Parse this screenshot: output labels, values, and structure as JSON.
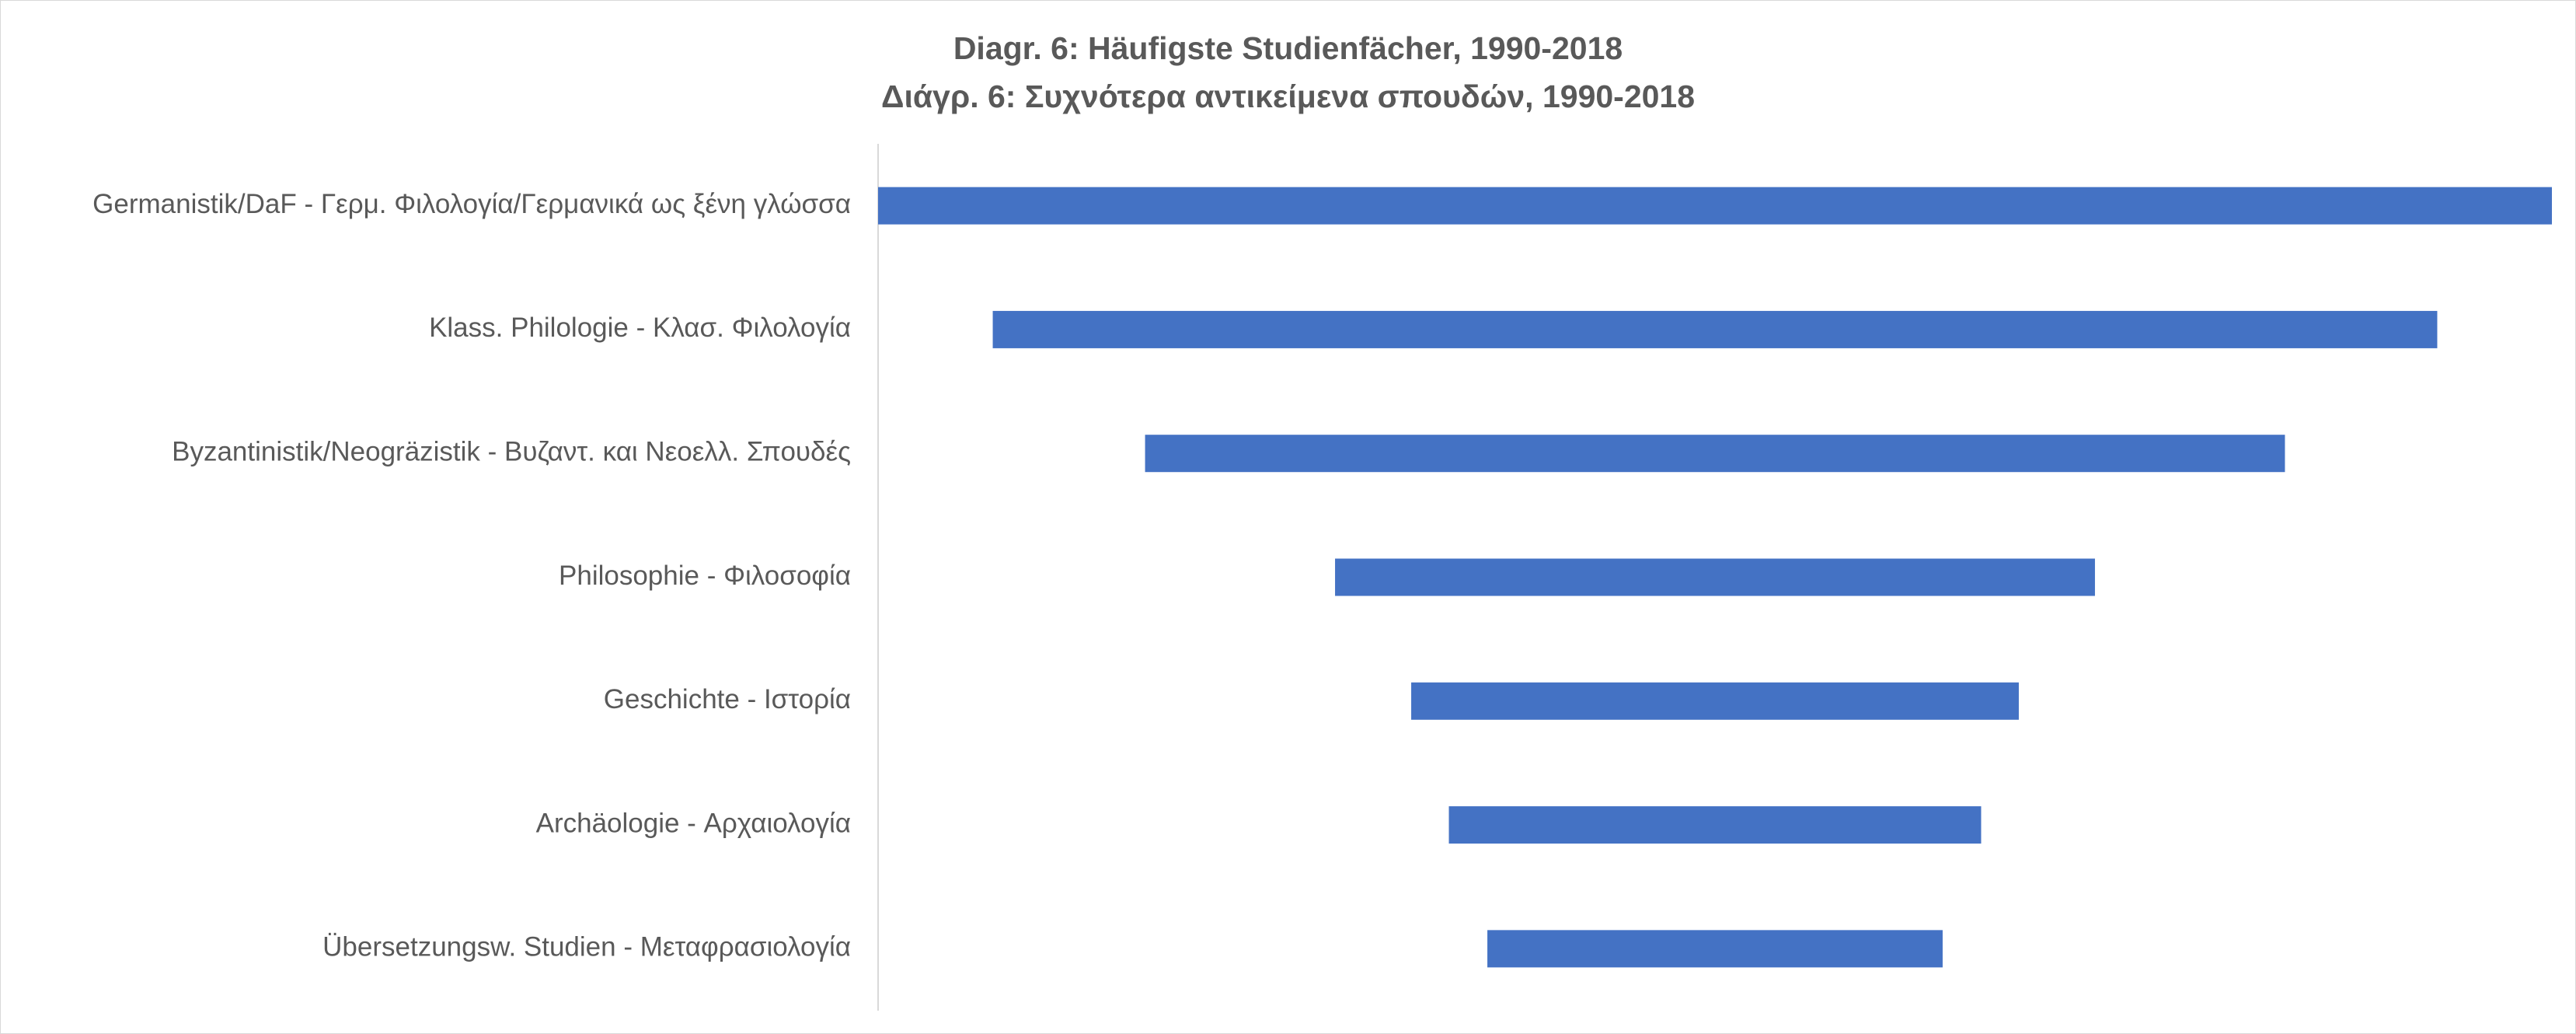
{
  "chart_data": {
    "type": "bar",
    "orientation": "horizontal",
    "layout": "centered-funnel",
    "title": "Diagr. 6: Häufigste Studienfächer, 1990-2018",
    "subtitle": "Διάγρ. 6: Συχνότερα αντικείμενα σπουδών, 1990-2018",
    "categories": [
      "Germanistik/DaF - Γερμ. Φιλολογία/Γερμανικά ως ξένη γλώσσα",
      "Klass. Philologie - Κλασ. Φιλολογία",
      "Byzantinistik/Neogräzistik - Βυζαντ. και Νεοελλ. Σπουδές",
      "Philosophie - Φιλοσοφία",
      "Geschichte - Ιστορία",
      "Archäologie - Αρχαιολογία",
      "Übersetzungsw. Studien - Μεταφρασιολογία"
    ],
    "values": [
      100,
      86.3,
      68.1,
      45.4,
      36.3,
      31.8,
      27.2
    ],
    "xlabel": "",
    "ylabel": "",
    "xlim": [
      0,
      100
    ],
    "grid": false,
    "legend": "none",
    "bar_color": "#4472C4",
    "axis_color": "#d9d9d9"
  }
}
